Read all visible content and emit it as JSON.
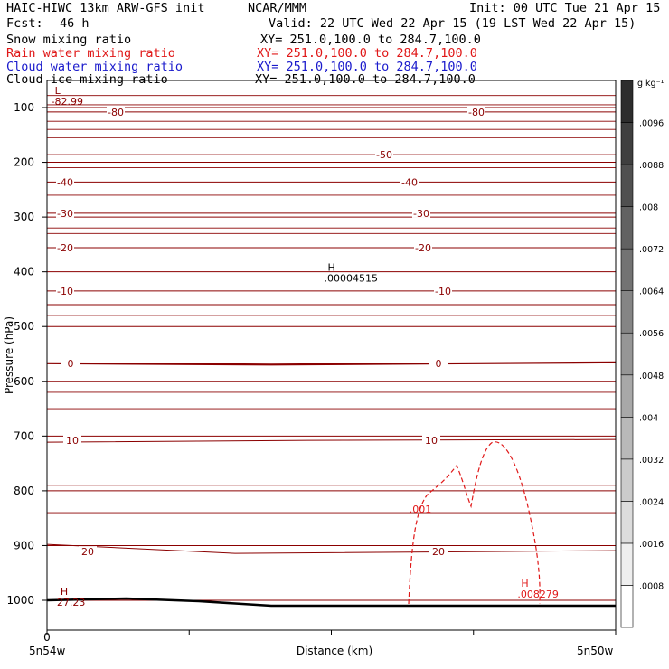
{
  "header": {
    "model": "HAIC-HIWC 13km ARW-GFS init",
    "org": "NCAR/MMM",
    "init": "Init: 00 UTC Tue 21 Apr 15",
    "fcst_label": "Fcst:",
    "fcst_value": "46 h",
    "valid": "Valid: 22 UTC Wed 22 Apr 15 (19 LST Wed 22 Apr 15)"
  },
  "fields": [
    {
      "name": "Snow mixing ratio",
      "xy": "XY= 251.0,100.0 to 284.7,100.0",
      "color": "#000000"
    },
    {
      "name": "Rain water mixing ratio",
      "xy": "XY= 251.0,100.0 to 284.7,100.0",
      "color": "#e01818"
    },
    {
      "name": "Cloud water mixing ratio",
      "xy": "XY= 251.0,100.0 to 284.7,100.0",
      "color": "#1a1acc"
    },
    {
      "name": "Cloud ice mixing ratio",
      "xy": "XY= 251.0,100.0 to 284.7,100.0",
      "color": "#000000"
    }
  ],
  "chart_data": {
    "type": "contour-cross-section",
    "ylabel": "Pressure (hPa)",
    "xlabel": "Distance (km)",
    "y_ticks": [
      100,
      200,
      300,
      400,
      500,
      600,
      700,
      800,
      900,
      1000
    ],
    "ylim": [
      1040,
      50
    ],
    "x_range": [
      0,
      200
    ],
    "x_start_label": "0",
    "x_left_label": "5n54w",
    "x_right_label": "5n50w",
    "temperature_isotherms": [
      {
        "label": "-80",
        "pressure": 108
      },
      {
        "label": "-50",
        "pressure": 186
      },
      {
        "label": "-40",
        "pressure": 236
      },
      {
        "label": "-30",
        "pressure": 293
      },
      {
        "label": "-20",
        "pressure": 356
      },
      {
        "label": "-10",
        "pressure": 435
      },
      {
        "label": "0",
        "pressure": 567
      },
      {
        "label": "10",
        "pressure": 708
      },
      {
        "label": "20",
        "pressure": 911
      }
    ],
    "extrema": [
      {
        "type": "L",
        "value": "-82.99",
        "x": 4,
        "p": 75
      },
      {
        "type": "H",
        "value": ".00004515",
        "x": 100,
        "p": 398
      },
      {
        "type": "H",
        "value": ".008279",
        "x": 168,
        "p": 975
      },
      {
        "type": "H",
        "value": "27.23",
        "x": 6,
        "p": 990
      }
    ],
    "rain_contour": {
      "label": ".001"
    },
    "colorbar": {
      "units": "g kg⁻¹",
      "levels": [
        ".0008",
        ".0016",
        ".0024",
        ".0032",
        ".004",
        ".0048",
        ".0056",
        ".0064",
        ".0072",
        ".008",
        ".0088",
        ".0096"
      ]
    }
  }
}
